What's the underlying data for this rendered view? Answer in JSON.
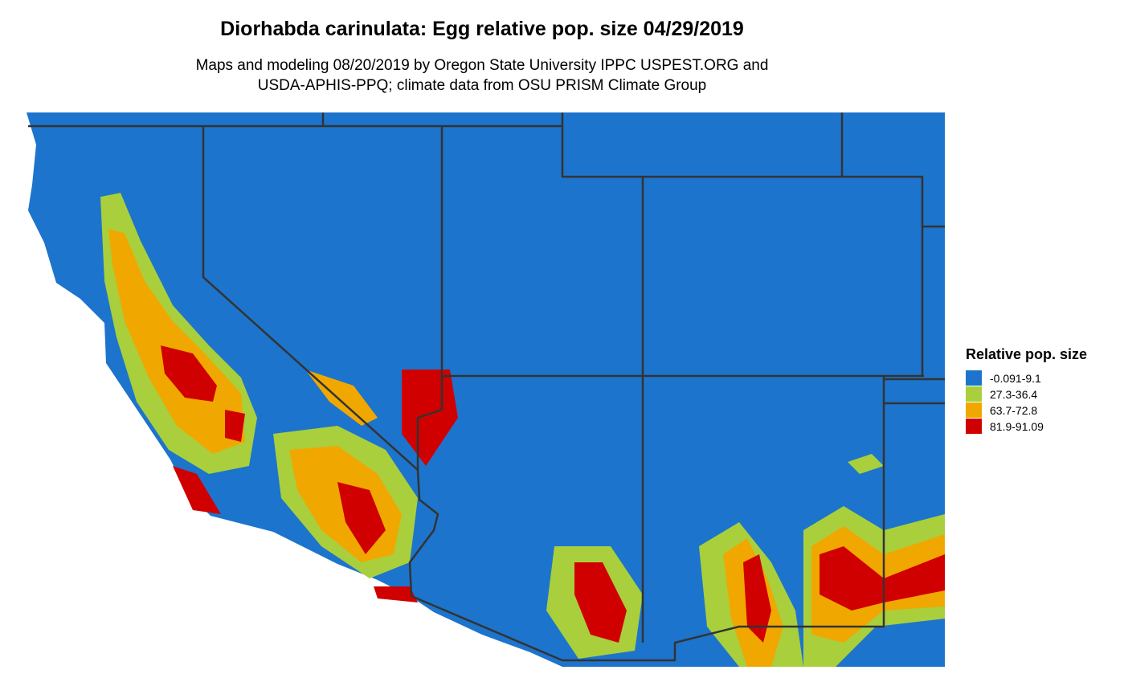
{
  "title": "Diorhabda carinulata: Egg relative pop. size 04/29/2019",
  "subtitle": [
    "Maps and modeling 08/20/2019 by Oregon State University IPPC USPEST.ORG and",
    "USDA-APHIS-PPQ; climate data from OSU PRISM Climate Group"
  ],
  "legend": {
    "title": "Relative pop. size",
    "items": [
      {
        "label": "-0.091-9.1",
        "color": "#1c74cc"
      },
      {
        "label": "27.3-36.4",
        "color": "#a9cf3c"
      },
      {
        "label": "63.7-72.8",
        "color": "#f0a800"
      },
      {
        "label": "81.9-91.09",
        "color": "#d10000"
      }
    ]
  }
}
